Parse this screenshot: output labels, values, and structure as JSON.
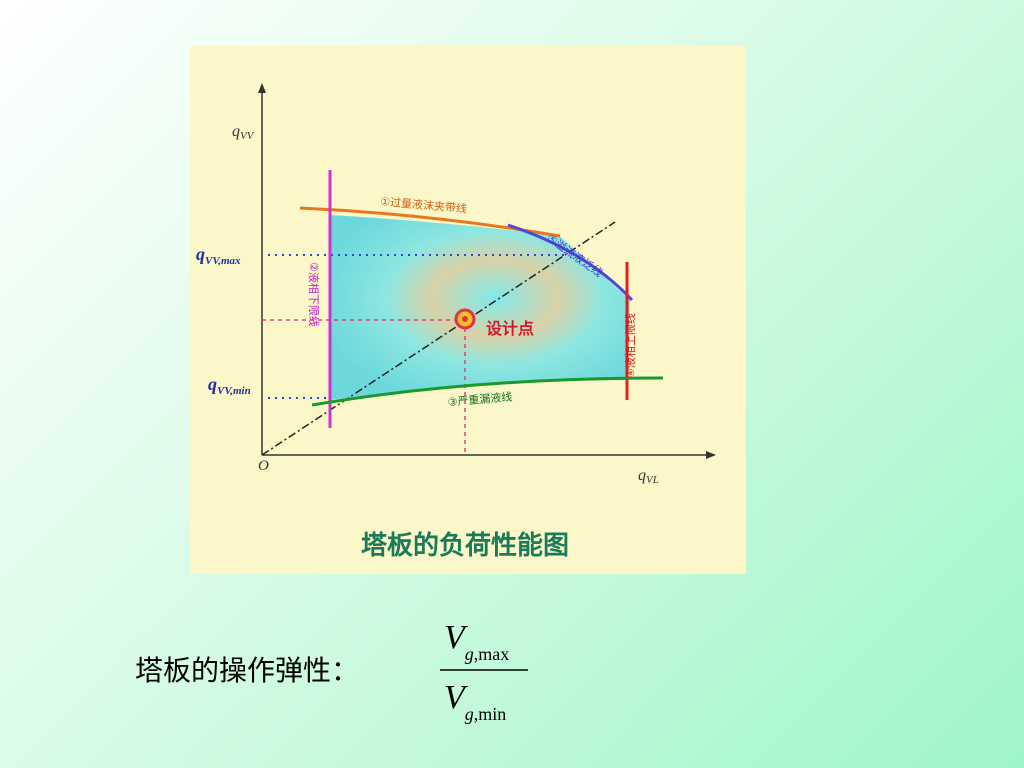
{
  "diagram": {
    "y_axis_label": {
      "main": "q",
      "sub": "VV"
    },
    "x_axis_label": {
      "main": "q",
      "sub": "VL"
    },
    "origin": "O",
    "y_max_label": {
      "main": "q",
      "sub": "VV,max"
    },
    "y_min_label": {
      "main": "q",
      "sub": "VV,min"
    },
    "lines": [
      "①过量液沫夹带线",
      "②液相下限线",
      "③严重漏液线",
      "④液相上限线",
      "⑤溢流液泛线"
    ],
    "design_point": "设计点",
    "caption": "塔板的负荷性能图"
  },
  "formula": {
    "label": "塔板的操作弹性：",
    "numerator": {
      "main": "V",
      "sub": "g",
      "suffix": ",max"
    },
    "denominator": {
      "main": "V",
      "sub": "g",
      "suffix": ",min"
    }
  }
}
